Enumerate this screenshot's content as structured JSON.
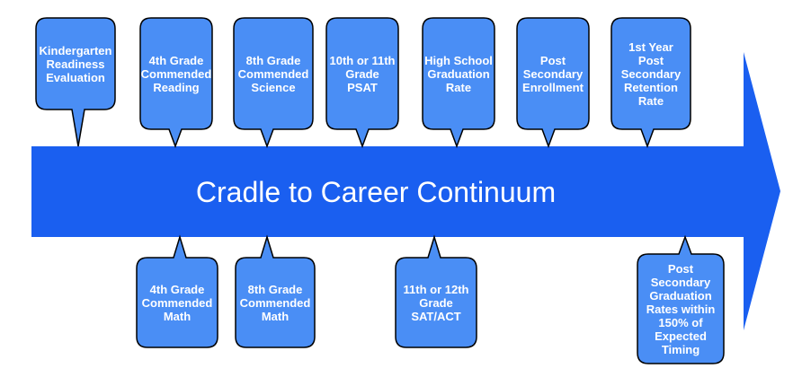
{
  "diagram": {
    "title": "Cradle to Career Continuum",
    "colors": {
      "arrow": "#1a5ff0",
      "box_fill": "#4a8ef5",
      "box_stroke": "#000000",
      "text": "#ffffff"
    },
    "milestones_top": [
      {
        "id": "kindergarten-readiness",
        "lines": [
          "Kindergarten",
          "Readiness",
          "Evaluation"
        ]
      },
      {
        "id": "4th-grade-reading",
        "lines": [
          "4th Grade",
          "Commended",
          "Reading"
        ]
      },
      {
        "id": "8th-grade-science",
        "lines": [
          "8th Grade",
          "Commended",
          "Science"
        ]
      },
      {
        "id": "psat",
        "lines": [
          "10th or 11th",
          "Grade",
          "PSAT"
        ]
      },
      {
        "id": "hs-graduation",
        "lines": [
          "High School",
          "Graduation",
          "Rate"
        ]
      },
      {
        "id": "post-secondary-enrollment",
        "lines": [
          "Post",
          "Secondary",
          "Enrollment"
        ]
      },
      {
        "id": "retention-rate",
        "lines": [
          "1st Year",
          "Post",
          "Secondary",
          "Retention",
          "Rate"
        ]
      }
    ],
    "milestones_bottom": [
      {
        "id": "4th-grade-math",
        "lines": [
          "4th Grade",
          "Commended",
          "Math"
        ]
      },
      {
        "id": "8th-grade-math",
        "lines": [
          "8th Grade",
          "Commended",
          "Math"
        ]
      },
      {
        "id": "sat-act",
        "lines": [
          "11th or 12th",
          "Grade",
          "SAT/ACT"
        ]
      },
      {
        "id": "ps-graduation-rates",
        "lines": [
          "Post",
          "Secondary",
          "Graduation",
          "Rates within",
          "150% of",
          "Expected",
          "Timing"
        ]
      }
    ]
  }
}
